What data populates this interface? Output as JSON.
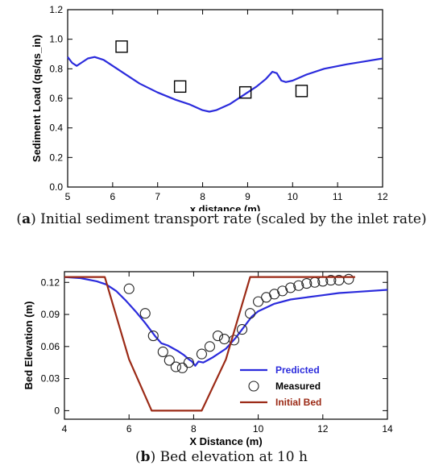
{
  "chart_data": [
    {
      "type": "line",
      "xlabel": "x distance (m)",
      "ylabel": "Sediment Load (qs/qs_in)",
      "xlim": [
        5,
        12
      ],
      "ylim": [
        0,
        1.2
      ],
      "xticks": [
        "5",
        "6",
        "7",
        "8",
        "9",
        "10",
        "11",
        "12"
      ],
      "yticks": [
        "0.0",
        "0.2",
        "0.4",
        "0.6",
        "0.8",
        "1.0",
        "1.2"
      ],
      "legend": "none",
      "grid": false,
      "series": [
        {
          "color": "#2b2bdc",
          "style": "line",
          "x": [
            5.0,
            5.1,
            5.2,
            5.3,
            5.45,
            5.6,
            5.8,
            6.0,
            6.3,
            6.6,
            7.0,
            7.4,
            7.7,
            8.0,
            8.15,
            8.3,
            8.6,
            8.9,
            9.2,
            9.4,
            9.55,
            9.65,
            9.75,
            9.85,
            10.0,
            10.3,
            10.7,
            11.2,
            11.6,
            12.0
          ],
          "y": [
            0.88,
            0.84,
            0.82,
            0.84,
            0.87,
            0.88,
            0.86,
            0.82,
            0.76,
            0.7,
            0.64,
            0.59,
            0.56,
            0.52,
            0.51,
            0.52,
            0.56,
            0.62,
            0.68,
            0.73,
            0.78,
            0.77,
            0.72,
            0.71,
            0.72,
            0.76,
            0.8,
            0.83,
            0.85,
            0.87
          ]
        },
        {
          "style": "square-markers",
          "x": [
            6.2,
            7.5,
            8.95,
            10.2
          ],
          "y": [
            0.95,
            0.68,
            0.64,
            0.65
          ]
        }
      ]
    },
    {
      "type": "line",
      "xlabel": "X Distance (m)",
      "ylabel": "Bed Elevation (m)",
      "xlim": [
        4,
        14
      ],
      "ylim": [
        -0.008,
        0.13
      ],
      "xticks": [
        "4",
        "6",
        "8",
        "10",
        "12",
        "14"
      ],
      "yticks": [
        "0",
        "0.03",
        "0.06",
        "0.09",
        "0.12"
      ],
      "yticks_values": [
        0,
        0.03,
        0.06,
        0.09,
        0.12
      ],
      "grid": false,
      "legend_position": "lower-right",
      "series": [
        {
          "name": "Predicted",
          "color": "#2b2bdc",
          "style": "line",
          "x": [
            4.0,
            4.5,
            5.0,
            5.3,
            5.6,
            5.9,
            6.2,
            6.5,
            6.8,
            7.0,
            7.2,
            7.5,
            7.7,
            7.85,
            7.95,
            8.05,
            8.15,
            8.3,
            8.6,
            9.0,
            9.3,
            9.6,
            9.8,
            10.0,
            10.5,
            11.0,
            11.5,
            12.0,
            12.5,
            13.0,
            14.0
          ],
          "y": [
            0.125,
            0.124,
            0.121,
            0.118,
            0.112,
            0.103,
            0.093,
            0.082,
            0.07,
            0.063,
            0.061,
            0.056,
            0.052,
            0.048,
            0.046,
            0.042,
            0.046,
            0.045,
            0.05,
            0.058,
            0.068,
            0.08,
            0.088,
            0.093,
            0.1,
            0.104,
            0.106,
            0.108,
            0.11,
            0.111,
            0.113
          ]
        },
        {
          "name": "Measured",
          "color": "#222222",
          "style": "circle-markers",
          "x": [
            6.0,
            6.5,
            6.75,
            7.05,
            7.25,
            7.45,
            7.65,
            7.85,
            8.25,
            8.5,
            8.75,
            8.95,
            9.25,
            9.5,
            9.75,
            10.0,
            10.25,
            10.5,
            10.75,
            11.0,
            11.25,
            11.5,
            11.75,
            12.0,
            12.25,
            12.5,
            12.8
          ],
          "y": [
            0.114,
            0.091,
            0.07,
            0.055,
            0.047,
            0.041,
            0.04,
            0.045,
            0.053,
            0.06,
            0.07,
            0.067,
            0.066,
            0.076,
            0.091,
            0.102,
            0.106,
            0.109,
            0.112,
            0.115,
            0.117,
            0.119,
            0.12,
            0.121,
            0.122,
            0.122,
            0.123
          ]
        },
        {
          "name": "Initial Bed",
          "color": "#9b2a16",
          "style": "line",
          "x": [
            4.0,
            5.25,
            6.0,
            6.7,
            8.25,
            9.0,
            9.75,
            13.0
          ],
          "y": [
            0.125,
            0.125,
            0.048,
            0.0,
            0.0,
            0.048,
            0.125,
            0.125
          ]
        }
      ]
    }
  ],
  "captions": {
    "a_label": "a",
    "a_text": "Initial sediment transport rate (scaled by the inlet rate)",
    "b_label": "b",
    "b_text": "Bed elevation at 10 h"
  }
}
